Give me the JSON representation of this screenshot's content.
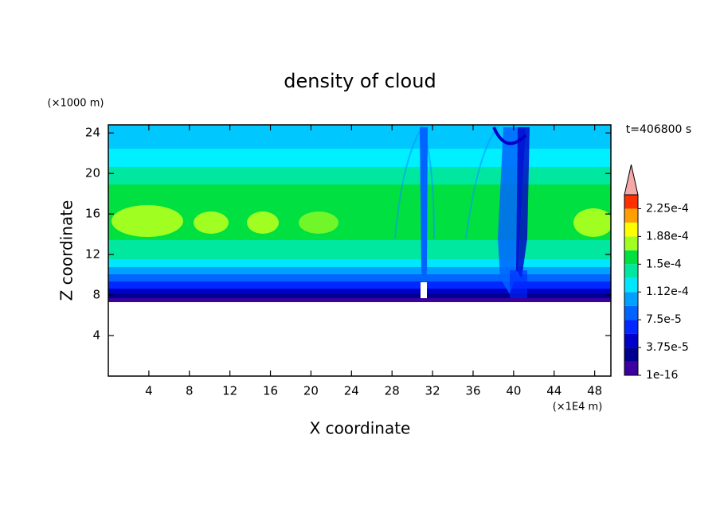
{
  "chart_data": {
    "type": "contour",
    "title": "density of cloud",
    "x_label": "X coordinate",
    "y_label": "Z coordinate",
    "x_unit": "(×1E4 m)",
    "y_unit": "(×1000 m)",
    "time_label": "t=406800 s",
    "xlim": [
      0,
      49.6
    ],
    "xticks": [
      4,
      8,
      12,
      16,
      20,
      24,
      28,
      32,
      36,
      40,
      44,
      48
    ],
    "ylim": [
      0,
      24.8
    ],
    "yticks": [
      4,
      8,
      12,
      16,
      20,
      24
    ],
    "colorbar": {
      "clim": [
        1e-16,
        0.00024375
      ],
      "colors": [
        "#3c00a0",
        "#000090",
        "#0000c8",
        "#0028ff",
        "#0064ff",
        "#00a0ff",
        "#00e6ff",
        "#00e8a0",
        "#00e040",
        "#a0ff20",
        "#ffff00",
        "#ffa000",
        "#ff3000"
      ],
      "extend_color": "#f4a8a8",
      "ticks": [
        {
          "value": 1e-16,
          "label": "1e-16"
        },
        {
          "value": 3.75e-05,
          "label": "3.75e-5"
        },
        {
          "value": 7.5e-05,
          "label": "7.5e-5"
        },
        {
          "value": 0.0001125,
          "label": "1.12e-4"
        },
        {
          "value": 0.00015,
          "label": "1.5e-4"
        },
        {
          "value": 0.0001875,
          "label": "1.88e-4"
        },
        {
          "value": 0.000225,
          "label": "2.25e-4"
        }
      ]
    }
  }
}
